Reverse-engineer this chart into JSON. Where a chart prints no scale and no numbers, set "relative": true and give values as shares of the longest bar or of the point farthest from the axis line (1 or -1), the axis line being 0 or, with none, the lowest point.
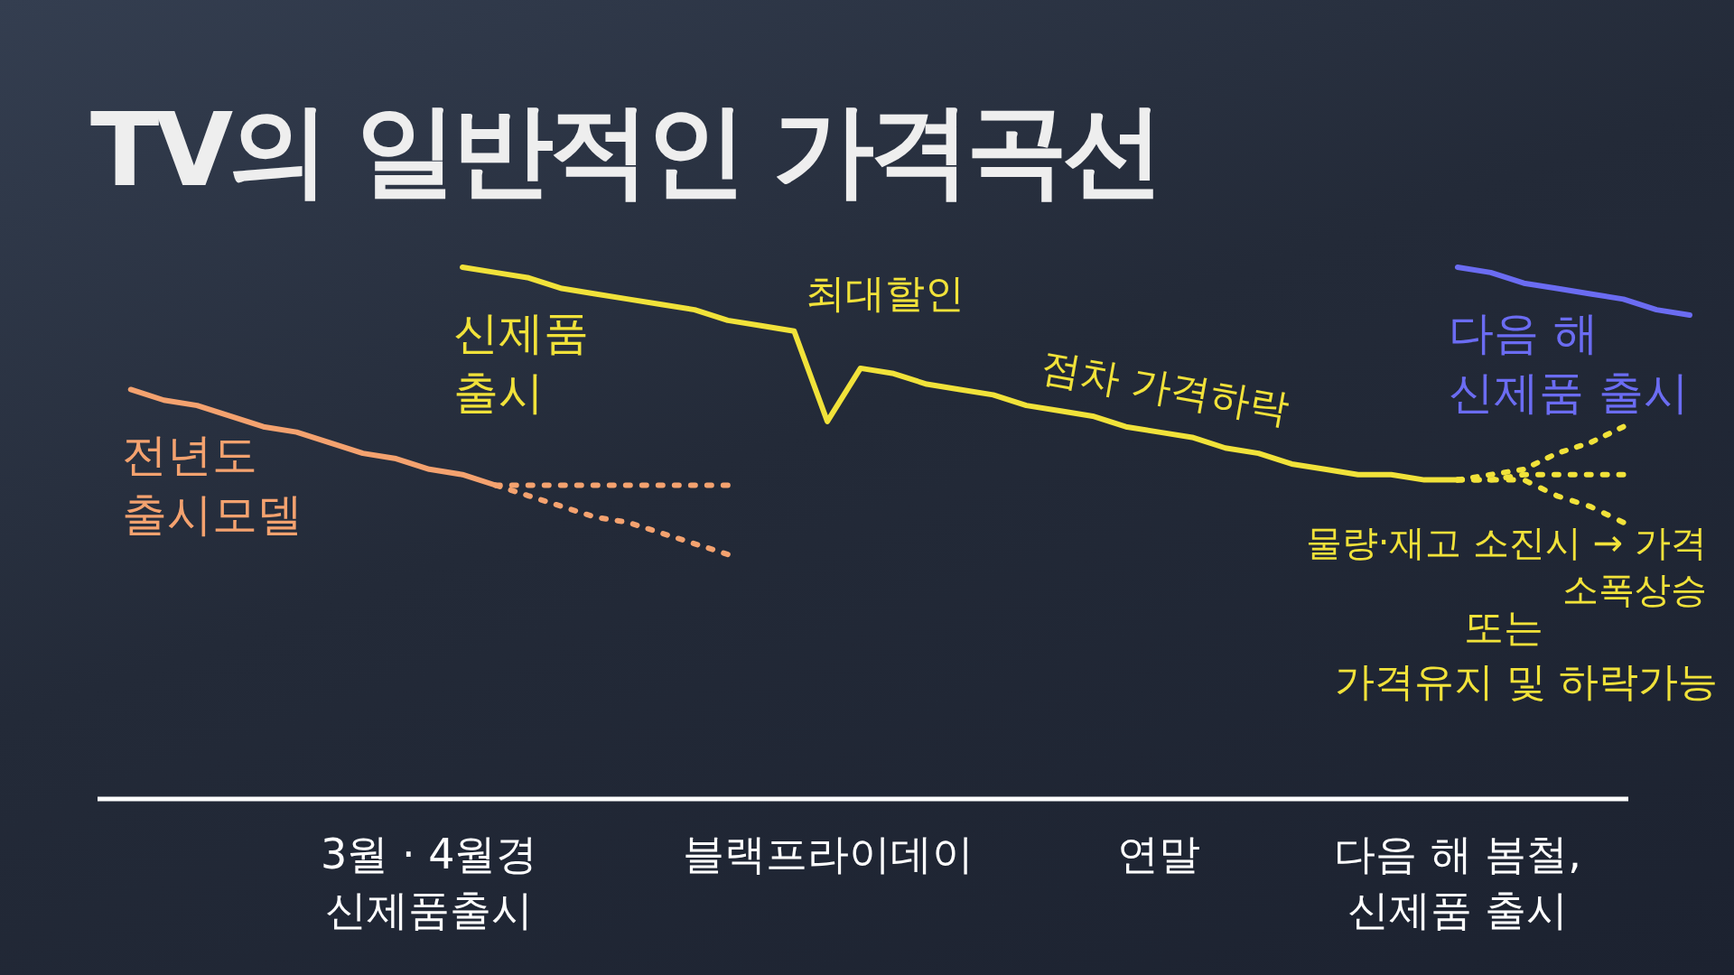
{
  "chart_data": {
    "type": "line",
    "title": "TV의 일반적인 가격곡선",
    "relative": true,
    "categories": [
      null,
      null,
      null,
      null,
      null,
      null,
      null,
      null,
      null,
      null,
      "3월 · 4월경 신제품출시",
      null,
      null,
      null,
      null,
      null,
      null,
      null,
      null,
      null,
      null,
      null,
      "블랙프라이데이",
      null,
      null,
      null,
      null,
      null,
      null,
      null,
      null,
      null,
      "연말",
      null,
      null,
      null,
      null,
      null,
      null,
      null,
      null,
      "다음 해 봄철, 신제품 출시",
      null,
      null,
      null,
      null,
      null,
      null,
      null
    ],
    "marker": "none",
    "series": [
      {
        "name": "전년도 출시모델",
        "color": "#f4a26f",
        "line_style": "solid",
        "values": [
          null,
          0.77,
          0.75,
          0.74,
          0.72,
          0.7,
          0.69,
          0.67,
          0.65,
          0.64,
          0.62,
          0.61,
          0.59,
          null,
          null,
          null,
          null,
          null,
          null,
          null,
          null,
          null,
          null,
          null,
          null,
          null,
          null,
          null,
          null,
          null,
          null,
          null,
          null,
          null,
          null,
          null,
          null,
          null,
          null,
          null,
          null,
          null,
          null,
          null,
          null,
          null,
          null,
          null,
          null
        ]
      },
      {
        "color": "#f4a26f",
        "line_style": "dotted",
        "values": [
          null,
          null,
          null,
          null,
          null,
          null,
          null,
          null,
          null,
          null,
          null,
          null,
          0.59,
          0.59,
          0.59,
          0.59,
          0.59,
          0.59,
          0.59,
          0.59,
          null,
          null,
          null,
          null,
          null,
          null,
          null,
          null,
          null,
          null,
          null,
          null,
          null,
          null,
          null,
          null,
          null,
          null,
          null,
          null,
          null,
          null,
          null,
          null,
          null,
          null,
          null,
          null,
          null
        ]
      },
      {
        "color": "#f4a26f",
        "line_style": "dotted",
        "values": [
          null,
          null,
          null,
          null,
          null,
          null,
          null,
          null,
          null,
          null,
          null,
          null,
          0.59,
          0.57,
          0.55,
          0.53,
          0.52,
          0.5,
          0.48,
          0.46,
          null,
          null,
          null,
          null,
          null,
          null,
          null,
          null,
          null,
          null,
          null,
          null,
          null,
          null,
          null,
          null,
          null,
          null,
          null,
          null,
          null,
          null,
          null,
          null,
          null,
          null,
          null,
          null,
          null
        ]
      },
      {
        "name": "신제품 출시",
        "color": "#f1e23a",
        "line_style": "solid",
        "values": [
          null,
          null,
          null,
          null,
          null,
          null,
          null,
          null,
          null,
          null,
          null,
          1.0,
          0.99,
          0.98,
          0.96,
          0.95,
          0.94,
          0.93,
          0.92,
          0.9,
          0.89,
          0.88,
          0.71,
          0.81,
          0.8,
          0.78,
          0.77,
          0.76,
          0.74,
          0.73,
          0.72,
          0.7,
          0.69,
          0.68,
          0.66,
          0.65,
          0.63,
          0.62,
          0.61,
          0.61,
          0.6,
          0.6,
          null,
          null,
          null,
          null,
          null,
          null,
          null
        ]
      },
      {
        "color": "#f1e23a",
        "line_style": "dotted",
        "values": [
          null,
          null,
          null,
          null,
          null,
          null,
          null,
          null,
          null,
          null,
          null,
          null,
          null,
          null,
          null,
          null,
          null,
          null,
          null,
          null,
          null,
          null,
          null,
          null,
          null,
          null,
          null,
          null,
          null,
          null,
          null,
          null,
          null,
          null,
          null,
          null,
          null,
          null,
          null,
          null,
          null,
          0.6,
          0.61,
          0.62,
          0.65,
          0.67,
          0.7,
          null,
          null
        ]
      },
      {
        "color": "#f1e23a",
        "line_style": "dotted",
        "values": [
          null,
          null,
          null,
          null,
          null,
          null,
          null,
          null,
          null,
          null,
          null,
          null,
          null,
          null,
          null,
          null,
          null,
          null,
          null,
          null,
          null,
          null,
          null,
          null,
          null,
          null,
          null,
          null,
          null,
          null,
          null,
          null,
          null,
          null,
          null,
          null,
          null,
          null,
          null,
          null,
          null,
          0.6,
          0.6,
          0.61,
          0.61,
          0.61,
          0.61,
          null,
          null
        ]
      },
      {
        "color": "#f1e23a",
        "line_style": "dotted",
        "values": [
          null,
          null,
          null,
          null,
          null,
          null,
          null,
          null,
          null,
          null,
          null,
          null,
          null,
          null,
          null,
          null,
          null,
          null,
          null,
          null,
          null,
          null,
          null,
          null,
          null,
          null,
          null,
          null,
          null,
          null,
          null,
          null,
          null,
          null,
          null,
          null,
          null,
          null,
          null,
          null,
          null,
          0.6,
          0.6,
          0.6,
          0.57,
          0.55,
          0.52,
          null,
          null
        ]
      },
      {
        "name": "다음 해 신제품 출시",
        "color": "#6b6cf2",
        "line_style": "solid",
        "values": [
          null,
          null,
          null,
          null,
          null,
          null,
          null,
          null,
          null,
          null,
          null,
          null,
          null,
          null,
          null,
          null,
          null,
          null,
          null,
          null,
          null,
          null,
          null,
          null,
          null,
          null,
          null,
          null,
          null,
          null,
          null,
          null,
          null,
          null,
          null,
          null,
          null,
          null,
          null,
          null,
          null,
          1.0,
          0.99,
          0.97,
          0.96,
          0.95,
          0.94,
          0.92,
          0.91
        ]
      }
    ],
    "annotations": [
      "최대할인",
      "점차 가격하락",
      "물량·재고 소진시 → 가격 소폭상승",
      "또는",
      "가격유지 및 하락가능"
    ]
  }
}
